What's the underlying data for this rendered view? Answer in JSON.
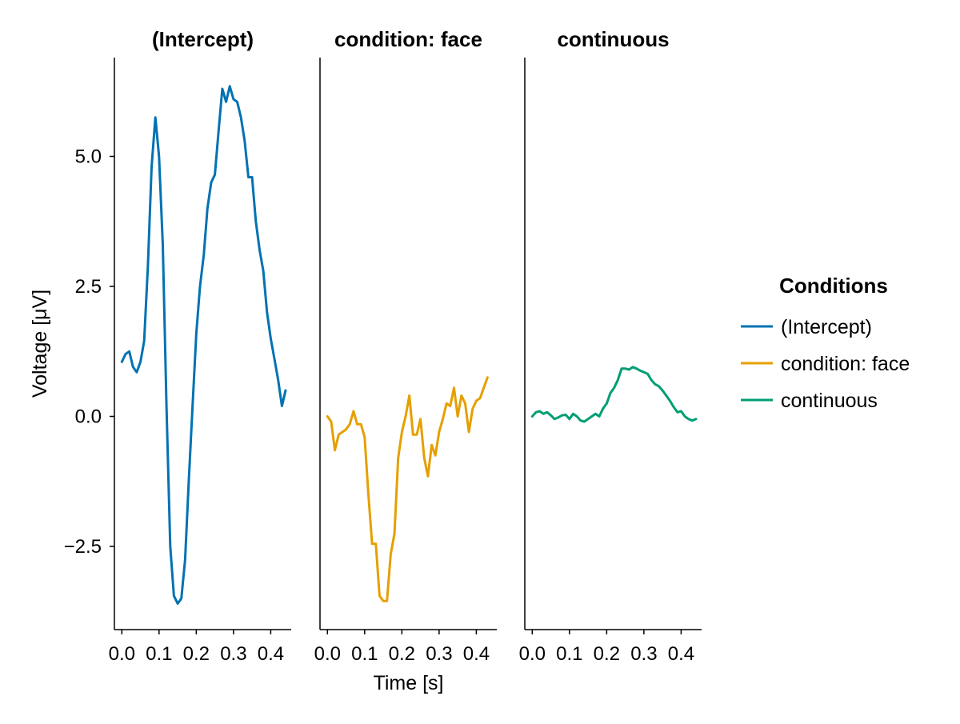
{
  "chart_data": {
    "type": "line",
    "ylabel": "Voltage [μV]",
    "xlabel": "Time [s]",
    "ylim": [
      -4.1,
      6.9
    ],
    "xlim": [
      -0.02,
      0.455
    ],
    "xticks": [
      0.0,
      0.1,
      0.2,
      0.3,
      0.4
    ],
    "xtick_labels": [
      "0.0",
      "0.1",
      "0.2",
      "0.3",
      "0.4"
    ],
    "yticks": [
      -2.5,
      0.0,
      2.5,
      5.0
    ],
    "ytick_labels": [
      "−2.5",
      "0.0",
      "2.5",
      "5.0"
    ],
    "grid": false,
    "legend": {
      "title": "Conditions",
      "position": "right",
      "entries": [
        "(Intercept)",
        "condition: face",
        "continuous"
      ]
    },
    "panels": [
      {
        "title": "(Intercept)",
        "series_name": "(Intercept)",
        "color": "#0072B2",
        "x": [
          0.0,
          0.01,
          0.02,
          0.03,
          0.04,
          0.05,
          0.06,
          0.07,
          0.08,
          0.09,
          0.1,
          0.11,
          0.12,
          0.13,
          0.14,
          0.15,
          0.16,
          0.17,
          0.18,
          0.19,
          0.2,
          0.21,
          0.22,
          0.23,
          0.24,
          0.25,
          0.26,
          0.27,
          0.28,
          0.29,
          0.3,
          0.31,
          0.32,
          0.33,
          0.34,
          0.35,
          0.36,
          0.37,
          0.38,
          0.39,
          0.4,
          0.41,
          0.42,
          0.43,
          0.44
        ],
        "y": [
          1.05,
          1.2,
          1.25,
          0.95,
          0.85,
          1.05,
          1.45,
          2.9,
          4.8,
          5.75,
          5.0,
          3.3,
          0.2,
          -2.5,
          -3.45,
          -3.6,
          -3.5,
          -2.75,
          -1.2,
          0.2,
          1.6,
          2.5,
          3.1,
          4.0,
          4.5,
          4.65,
          5.5,
          6.3,
          6.05,
          6.35,
          6.1,
          6.05,
          5.75,
          5.3,
          4.6,
          4.6,
          3.75,
          3.2,
          2.8,
          2.0,
          1.5,
          1.1,
          0.7,
          0.2,
          0.5
        ]
      },
      {
        "title": "condition: face",
        "series_name": "condition: face",
        "color": "#E69F00",
        "x": [
          0.0,
          0.01,
          0.02,
          0.03,
          0.04,
          0.05,
          0.06,
          0.07,
          0.08,
          0.09,
          0.1,
          0.11,
          0.12,
          0.13,
          0.14,
          0.15,
          0.16,
          0.17,
          0.18,
          0.19,
          0.2,
          0.21,
          0.22,
          0.23,
          0.24,
          0.25,
          0.26,
          0.27,
          0.28,
          0.29,
          0.3,
          0.31,
          0.32,
          0.33,
          0.34,
          0.35,
          0.36,
          0.37,
          0.38,
          0.39,
          0.4,
          0.41,
          0.42,
          0.43
        ],
        "y": [
          0.0,
          -0.1,
          -0.65,
          -0.35,
          -0.3,
          -0.25,
          -0.15,
          0.1,
          -0.15,
          -0.15,
          -0.4,
          -1.5,
          -2.45,
          -2.45,
          -3.45,
          -3.55,
          -3.55,
          -2.65,
          -2.25,
          -0.8,
          -0.3,
          0.0,
          0.4,
          -0.35,
          -0.35,
          -0.05,
          -0.8,
          -1.15,
          -0.55,
          -0.75,
          -0.3,
          -0.05,
          0.25,
          0.2,
          0.55,
          0.0,
          0.4,
          0.25,
          -0.3,
          0.15,
          0.3,
          0.35,
          0.55,
          0.75
        ]
      },
      {
        "title": "continuous",
        "series_name": "continuous",
        "color": "#009E73",
        "x": [
          0.0,
          0.01,
          0.02,
          0.03,
          0.04,
          0.05,
          0.06,
          0.07,
          0.08,
          0.09,
          0.1,
          0.11,
          0.12,
          0.13,
          0.14,
          0.15,
          0.16,
          0.17,
          0.18,
          0.19,
          0.2,
          0.21,
          0.22,
          0.23,
          0.24,
          0.25,
          0.26,
          0.27,
          0.28,
          0.29,
          0.3,
          0.31,
          0.32,
          0.33,
          0.34,
          0.35,
          0.36,
          0.37,
          0.38,
          0.39,
          0.4,
          0.41,
          0.42,
          0.43,
          0.44
        ],
        "y": [
          0.0,
          0.08,
          0.1,
          0.05,
          0.08,
          0.02,
          -0.05,
          -0.02,
          0.02,
          0.03,
          -0.05,
          0.05,
          0.0,
          -0.08,
          -0.1,
          -0.05,
          0.0,
          0.05,
          0.0,
          0.15,
          0.25,
          0.45,
          0.55,
          0.7,
          0.92,
          0.92,
          0.9,
          0.95,
          0.92,
          0.88,
          0.85,
          0.82,
          0.7,
          0.62,
          0.58,
          0.5,
          0.4,
          0.3,
          0.18,
          0.08,
          0.1,
          0.0,
          -0.05,
          -0.08,
          -0.05
        ]
      }
    ]
  }
}
